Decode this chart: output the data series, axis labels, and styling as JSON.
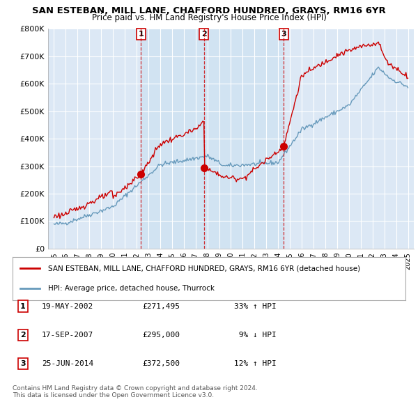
{
  "title": "SAN ESTEBAN, MILL LANE, CHAFFORD HUNDRED, GRAYS, RM16 6YR",
  "subtitle": "Price paid vs. HM Land Registry's House Price Index (HPI)",
  "red_label": "SAN ESTEBAN, MILL LANE, CHAFFORD HUNDRED, GRAYS, RM16 6YR (detached house)",
  "blue_label": "HPI: Average price, detached house, Thurrock",
  "footer1": "Contains HM Land Registry data © Crown copyright and database right 2024.",
  "footer2": "This data is licensed under the Open Government Licence v3.0.",
  "transactions": [
    {
      "num": 1,
      "date": "19-MAY-2002",
      "price": "£271,495",
      "hpi": "33% ↑ HPI",
      "year": 2002.38
    },
    {
      "num": 2,
      "date": "17-SEP-2007",
      "price": "£295,000",
      "hpi": " 9% ↓ HPI",
      "year": 2007.71
    },
    {
      "num": 3,
      "date": "25-JUN-2014",
      "price": "£372,500",
      "hpi": "12% ↑ HPI",
      "year": 2014.48
    }
  ],
  "red_color": "#cc0000",
  "blue_color": "#6699bb",
  "plot_bg": "#dce8f5",
  "ylim": [
    0,
    800000
  ],
  "yticks": [
    0,
    100000,
    200000,
    300000,
    400000,
    500000,
    600000,
    700000,
    800000
  ],
  "xlim_start": 1994.5,
  "xlim_end": 2025.5
}
